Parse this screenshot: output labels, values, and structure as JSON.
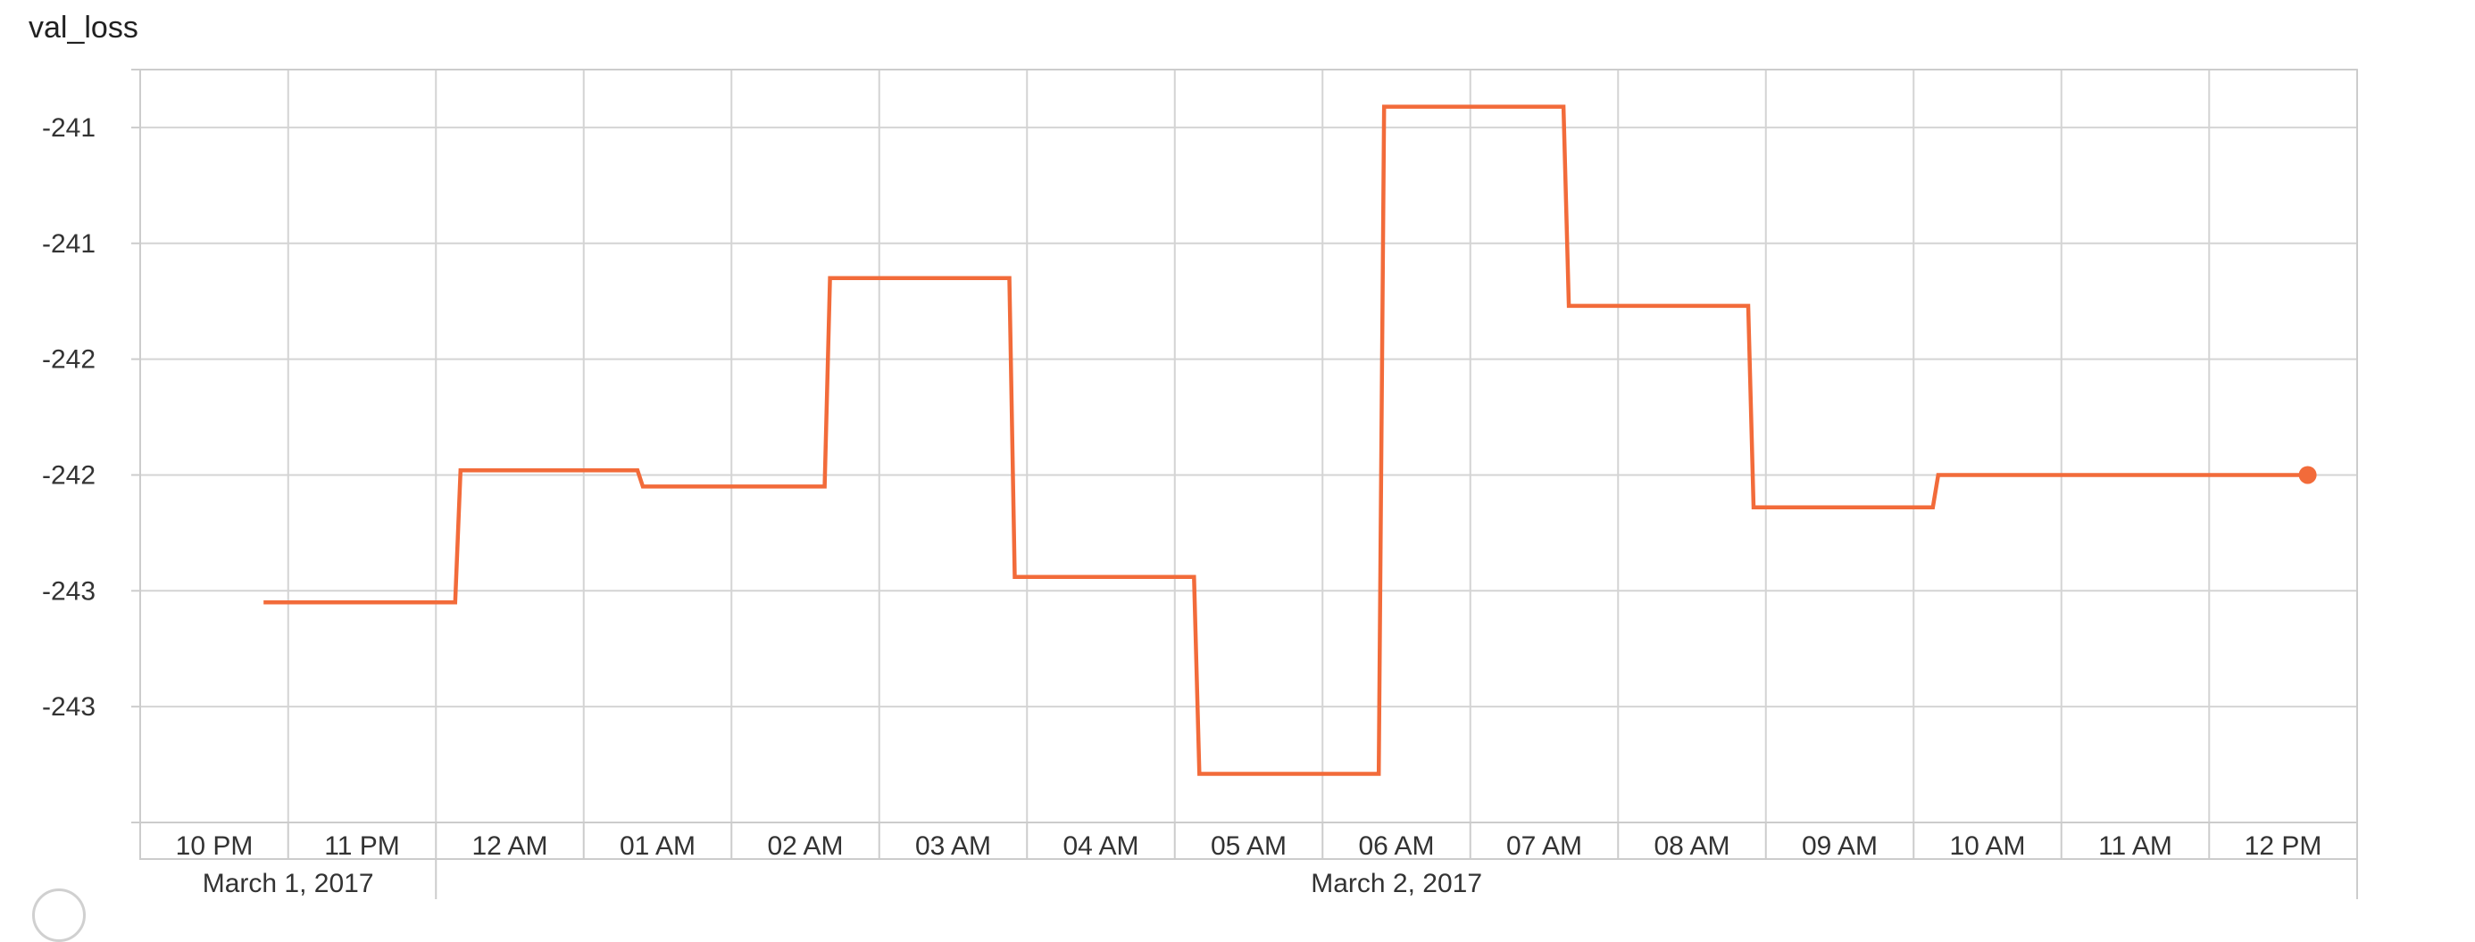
{
  "chart_data": {
    "type": "line",
    "step": true,
    "title": "val_loss",
    "xlabel": "",
    "ylabel": "",
    "x_ticks": [
      "10 PM",
      "11 PM",
      "12 AM",
      "01 AM",
      "02 AM",
      "03 AM",
      "04 AM",
      "05 AM",
      "06 AM",
      "07 AM",
      "08 AM",
      "09 AM",
      "10 AM",
      "11 AM",
      "12 PM"
    ],
    "x_date_labels": [
      "March 1, 2017",
      "March 2, 2017"
    ],
    "y_ticks": [
      "-241",
      "-241",
      "-242",
      "-242",
      "-243",
      "-243"
    ],
    "y_tick_values": [
      -240.75,
      -241.25,
      -241.75,
      -242.25,
      -242.75,
      -243.25
    ],
    "ylim": [
      -243.75,
      -240.5
    ],
    "xlim": [
      "2017-03-01 21:35",
      "2017-03-02 12:59"
    ],
    "grid": true,
    "series_color": "#f26b3a",
    "series": [
      {
        "x": [
          "2017-03-01 22:20",
          "2017-03-01 23:40",
          "2017-03-02 00:54",
          "2017-03-02 02:10",
          "2017-03-02 03:25",
          "2017-03-02 04:40",
          "2017-03-02 05:55",
          "2017-03-02 07:10",
          "2017-03-02 08:25",
          "2017-03-02 09:40",
          "2017-03-02 10:55",
          "2017-03-02 12:10"
        ],
        "values": [
          -242.8,
          -242.23,
          -242.3,
          -241.4,
          -242.69,
          -243.54,
          -240.66,
          -241.52,
          -242.39,
          -242.25,
          -242.25,
          -242.25
        ]
      }
    ]
  }
}
